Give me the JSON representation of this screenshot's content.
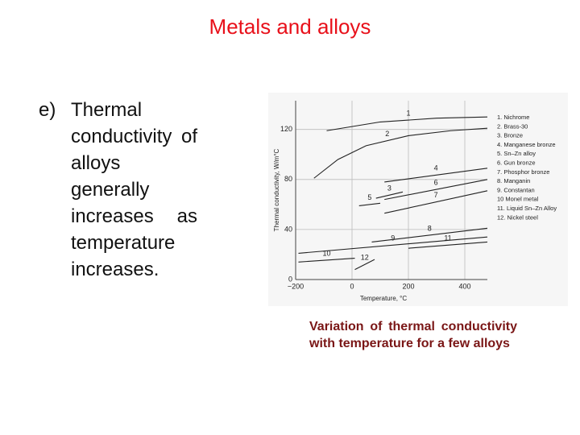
{
  "title": "Metals and alloys",
  "bullet": {
    "marker": "e)",
    "text": "Thermal conductivity of alloys generally increases as temperature increases."
  },
  "caption": "Variation of thermal conductivity with temperature for a few alloys",
  "chart_data": {
    "type": "line",
    "x_label": "Temperature, °C",
    "y_label": "Thermal conductivity, W/m°C",
    "xlim": [
      -200,
      480
    ],
    "ylim": [
      0,
      143
    ],
    "xticks": [
      {
        "value": -200,
        "label": "−200"
      },
      0,
      200,
      400
    ],
    "yticks": [
      0,
      40,
      80,
      120
    ],
    "grid": true,
    "line_color": "#222222",
    "series": [
      {
        "name": "1. Nichrome",
        "label": "1",
        "x": [
          -90,
          100,
          300,
          480
        ],
        "values": [
          119,
          126,
          129,
          130
        ]
      },
      {
        "name": "2. Brass-30",
        "label": "2",
        "x": [
          -135,
          -50,
          50,
          200,
          350,
          480
        ],
        "values": [
          81,
          96,
          107,
          115,
          119,
          121
        ]
      },
      {
        "name": "3. Bronze",
        "label": "3",
        "x": [
          85,
          180
        ],
        "values": [
          65,
          70
        ]
      },
      {
        "name": "4. Manganese bronze",
        "label": "4",
        "x": [
          115,
          480
        ],
        "values": [
          78,
          89
        ]
      },
      {
        "name": "5. Sn–Zn alloy",
        "label": "5",
        "x": [
          25,
          100
        ],
        "values": [
          59,
          61
        ]
      },
      {
        "name": "6. Gun bronze",
        "label": "6",
        "x": [
          115,
          480
        ],
        "values": [
          64,
          80
        ]
      },
      {
        "name": "7. Phosphor bronze",
        "label": "7",
        "x": [
          115,
          480
        ],
        "values": [
          53,
          71
        ]
      },
      {
        "name": "8. Manganin",
        "label": "8",
        "x": [
          70,
          480
        ],
        "values": [
          30,
          41
        ]
      },
      {
        "name": "9. Constantan",
        "label": "9",
        "x": [
          -190,
          480
        ],
        "values": [
          21,
          34
        ]
      },
      {
        "name": "10 Monel metal",
        "label": "10",
        "x": [
          -190,
          10
        ],
        "values": [
          14,
          17
        ]
      },
      {
        "name": "11. Liquid Sn–Zn Alloy",
        "label": "11",
        "x": [
          200,
          480
        ],
        "values": [
          25,
          30
        ]
      },
      {
        "name": "12. Nickel steel",
        "label": "12",
        "x": [
          10,
          80
        ],
        "values": [
          8,
          16
        ]
      }
    ]
  }
}
